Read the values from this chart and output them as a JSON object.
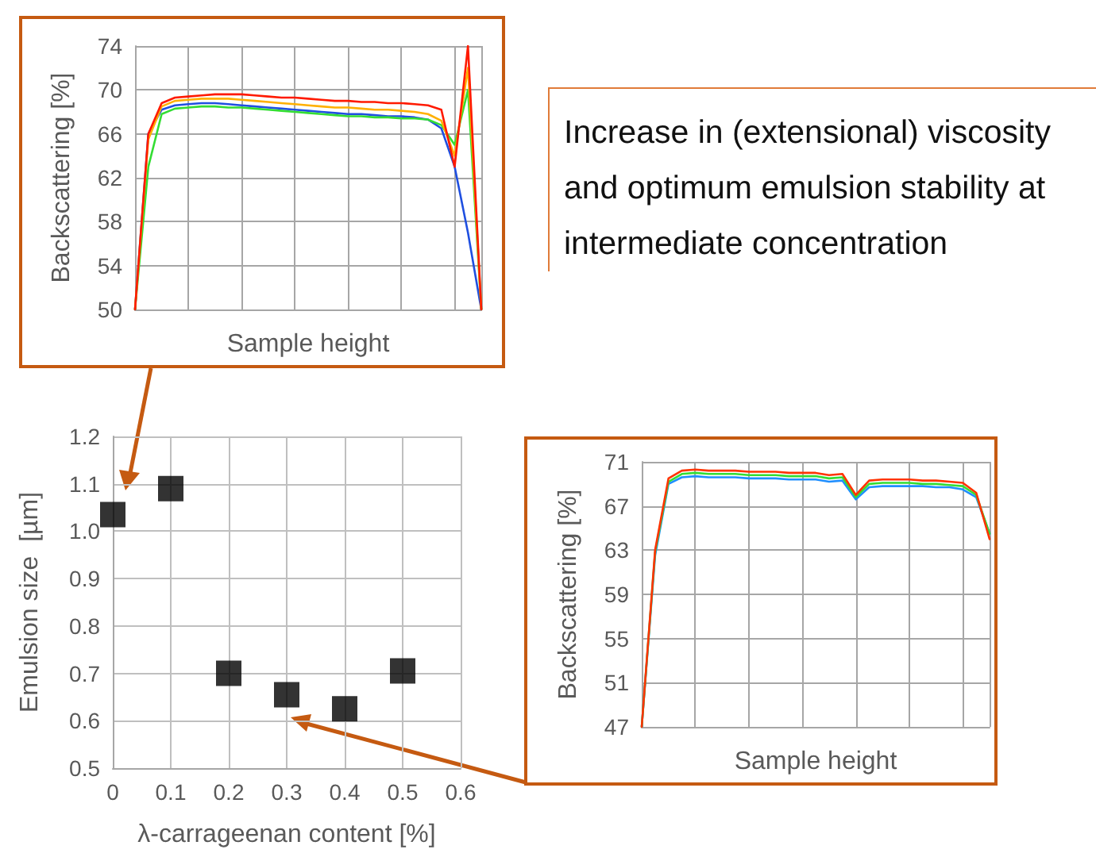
{
  "chart_data": [
    {
      "type": "line",
      "xlabel": "Sample height",
      "ylabel": "Backscattering [%]",
      "categories": [
        null,
        null,
        null,
        null,
        null,
        null,
        null,
        null,
        null,
        null,
        null,
        null,
        null,
        null,
        null,
        null,
        null,
        null,
        null,
        null,
        null,
        null,
        null,
        null,
        null,
        null,
        null
      ],
      "ylim": [
        50,
        74
      ],
      "yticks": [
        50,
        54,
        58,
        62,
        66,
        70,
        74
      ],
      "grid": true,
      "tick_labels": "y",
      "series": [
        {
          "color": "#1f4fe0",
          "values": [
            50,
            66,
            68.2,
            68.6,
            68.7,
            68.8,
            68.8,
            68.7,
            68.6,
            68.5,
            68.4,
            68.3,
            68.2,
            68.1,
            68.0,
            67.9,
            67.8,
            67.8,
            67.7,
            67.6,
            67.6,
            67.5,
            67.3,
            66.5,
            63,
            57,
            50
          ]
        },
        {
          "color": "#33dd33",
          "values": [
            50,
            63,
            67.8,
            68.3,
            68.4,
            68.5,
            68.5,
            68.4,
            68.4,
            68.3,
            68.2,
            68.1,
            68.0,
            67.9,
            67.8,
            67.7,
            67.6,
            67.6,
            67.5,
            67.5,
            67.4,
            67.4,
            67.3,
            66.8,
            65,
            70,
            50
          ]
        },
        {
          "color": "#ffb000",
          "values": [
            50,
            65.5,
            68.5,
            69.0,
            69.1,
            69.2,
            69.2,
            69.2,
            69.1,
            69.0,
            68.9,
            68.8,
            68.7,
            68.6,
            68.5,
            68.4,
            68.4,
            68.3,
            68.2,
            68.2,
            68.1,
            68.0,
            67.8,
            67.2,
            64,
            72,
            50
          ]
        },
        {
          "color": "#ff1a00",
          "values": [
            50,
            66,
            68.8,
            69.3,
            69.4,
            69.5,
            69.6,
            69.6,
            69.6,
            69.5,
            69.4,
            69.3,
            69.3,
            69.2,
            69.1,
            69.0,
            69.0,
            68.9,
            68.9,
            68.8,
            68.8,
            68.7,
            68.6,
            68.2,
            63,
            74,
            50
          ]
        }
      ]
    },
    {
      "type": "scatter",
      "xlabel": "λ-carrageenan content [%]",
      "ylabel": "Emulsion size  [µm]",
      "annotations": [
        "Increase in (extensional) viscosity and optimum emulsion stability at intermediate concentration"
      ],
      "x": [
        0,
        0.1,
        0.2,
        0.3,
        0.4,
        0.5
      ],
      "xlim": [
        0,
        0.6
      ],
      "xticks": [
        0,
        0.1,
        0.2,
        0.3,
        0.4,
        0.5,
        0.6
      ],
      "ylim": [
        0.5,
        1.2
      ],
      "yticks": [
        0.5,
        0.6,
        0.7,
        0.8,
        0.9,
        {
          "value": 1,
          "label": "1.0"
        },
        1.1,
        1.2
      ],
      "grid": true,
      "marker": "square",
      "series": [
        {
          "color": "#000000",
          "values": [
            1.035,
            1.09,
            0.7,
            0.655,
            0.625,
            0.705
          ]
        }
      ]
    },
    {
      "type": "line",
      "xlabel": "Sample height",
      "ylabel": "Backscattering [%]",
      "categories": [
        null,
        null,
        null,
        null,
        null,
        null,
        null,
        null,
        null,
        null,
        null,
        null,
        null,
        null,
        null,
        null,
        null,
        null,
        null,
        null,
        null,
        null,
        null,
        null,
        null,
        null,
        null
      ],
      "ylim": [
        47,
        71
      ],
      "yticks": [
        47,
        51,
        55,
        59,
        63,
        67,
        71
      ],
      "grid": true,
      "tick_labels": "y",
      "series": [
        {
          "color": "#1f8fff",
          "values": [
            47,
            62.5,
            69.0,
            69.6,
            69.7,
            69.6,
            69.6,
            69.6,
            69.5,
            69.5,
            69.5,
            69.4,
            69.4,
            69.4,
            69.2,
            69.3,
            67.6,
            68.7,
            68.8,
            68.8,
            68.8,
            68.8,
            68.7,
            68.7,
            68.5,
            67.8,
            64.5
          ]
        },
        {
          "color": "#33dd33",
          "values": [
            47,
            62.8,
            69.2,
            69.9,
            70.0,
            69.9,
            69.9,
            69.9,
            69.8,
            69.8,
            69.8,
            69.7,
            69.7,
            69.7,
            69.5,
            69.6,
            67.8,
            69.0,
            69.1,
            69.1,
            69.1,
            69.0,
            69.0,
            68.9,
            68.8,
            68.0,
            64.5
          ]
        },
        {
          "color": "#ff3300",
          "values": [
            47,
            63,
            69.5,
            70.2,
            70.3,
            70.2,
            70.2,
            70.2,
            70.1,
            70.1,
            70.1,
            70.0,
            70.0,
            70.0,
            69.8,
            69.9,
            68.0,
            69.3,
            69.4,
            69.4,
            69.4,
            69.3,
            69.3,
            69.2,
            69.1,
            68.2,
            64
          ]
        }
      ]
    }
  ]
}
